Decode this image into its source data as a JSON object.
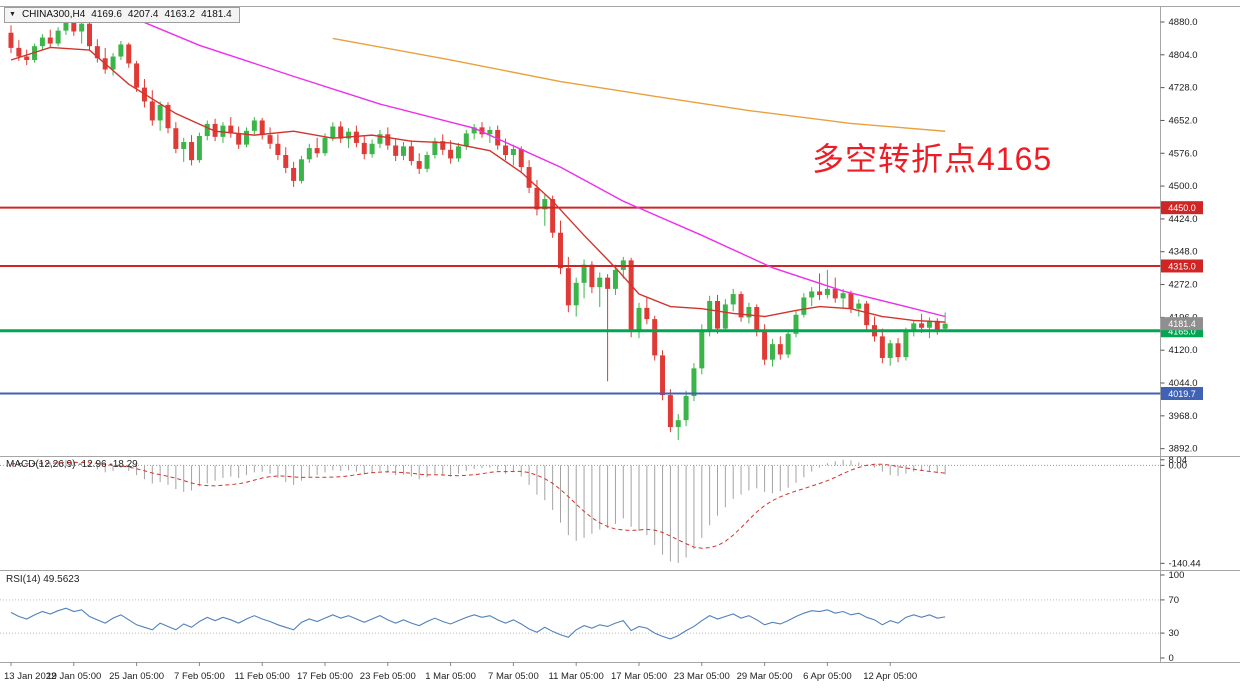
{
  "symbol_bar": {
    "collapse_icon": "▼",
    "title": "CHINA300,H4",
    "open": "4169.6",
    "high": "4207.4",
    "low": "4163.2",
    "close": "4181.4"
  },
  "annotation": {
    "text": "多空转折点4165",
    "color": "#ee1c25"
  },
  "chart_data": [
    {
      "type": "candlestick",
      "title": "CHINA300,H4",
      "timeframe": "H4",
      "ylim": [
        3875,
        4917
      ],
      "y_ticks": [
        4880,
        4804,
        4728,
        4652,
        4576,
        4500,
        4424,
        4348,
        4272,
        4196,
        4120,
        4044,
        3968,
        3892
      ],
      "x_labels": [
        "13 Jan 2022",
        "19 Jan 05:00",
        "25 Jan 05:00",
        "7 Feb 05:00",
        "11 Feb 05:00",
        "17 Feb 05:00",
        "23 Feb 05:00",
        "1 Mar 05:00",
        "7 Mar 05:00",
        "11 Mar 05:00",
        "17 Mar 05:00",
        "23 Mar 05:00",
        "29 Mar 05:00",
        "6 Apr 05:00",
        "12 Apr 05:00"
      ],
      "label_every": 8,
      "up_color": "#3bb54a",
      "down_color": "#df3a35",
      "ohlc": [
        [
          4855,
          4872,
          4808,
          4820
        ],
        [
          4820,
          4838,
          4790,
          4800
        ],
        [
          4800,
          4816,
          4780,
          4792
        ],
        [
          4792,
          4830,
          4786,
          4824
        ],
        [
          4824,
          4852,
          4814,
          4844
        ],
        [
          4844,
          4862,
          4820,
          4830
        ],
        [
          4830,
          4868,
          4824,
          4860
        ],
        [
          4860,
          4898,
          4850,
          4886
        ],
        [
          4886,
          4900,
          4848,
          4858
        ],
        [
          4858,
          4890,
          4830,
          4876
        ],
        [
          4876,
          4882,
          4816,
          4824
        ],
        [
          4824,
          4840,
          4786,
          4796
        ],
        [
          4796,
          4820,
          4760,
          4770
        ],
        [
          4770,
          4808,
          4756,
          4800
        ],
        [
          4800,
          4836,
          4792,
          4828
        ],
        [
          4828,
          4832,
          4774,
          4784
        ],
        [
          4784,
          4790,
          4718,
          4728
        ],
        [
          4728,
          4748,
          4682,
          4696
        ],
        [
          4696,
          4722,
          4640,
          4652
        ],
        [
          4652,
          4696,
          4628,
          4688
        ],
        [
          4688,
          4694,
          4622,
          4634
        ],
        [
          4634,
          4648,
          4576,
          4586
        ],
        [
          4586,
          4612,
          4556,
          4602
        ],
        [
          4602,
          4618,
          4548,
          4560
        ],
        [
          4560,
          4624,
          4554,
          4616
        ],
        [
          4616,
          4652,
          4606,
          4644
        ],
        [
          4644,
          4656,
          4604,
          4614
        ],
        [
          4614,
          4648,
          4600,
          4640
        ],
        [
          4640,
          4660,
          4612,
          4622
        ],
        [
          4622,
          4638,
          4586,
          4596
        ],
        [
          4596,
          4636,
          4590,
          4628
        ],
        [
          4628,
          4660,
          4620,
          4652
        ],
        [
          4652,
          4658,
          4608,
          4618
        ],
        [
          4618,
          4636,
          4586,
          4598
        ],
        [
          4598,
          4620,
          4560,
          4572
        ],
        [
          4572,
          4590,
          4530,
          4542
        ],
        [
          4542,
          4556,
          4498,
          4512
        ],
        [
          4512,
          4570,
          4506,
          4562
        ],
        [
          4562,
          4598,
          4554,
          4588
        ],
        [
          4588,
          4612,
          4566,
          4576
        ],
        [
          4576,
          4622,
          4570,
          4612
        ],
        [
          4612,
          4648,
          4604,
          4638
        ],
        [
          4638,
          4650,
          4600,
          4610
        ],
        [
          4610,
          4634,
          4588,
          4626
        ],
        [
          4626,
          4640,
          4590,
          4600
        ],
        [
          4600,
          4616,
          4562,
          4574
        ],
        [
          4574,
          4608,
          4566,
          4598
        ],
        [
          4598,
          4630,
          4588,
          4620
        ],
        [
          4620,
          4636,
          4584,
          4594
        ],
        [
          4594,
          4610,
          4558,
          4570
        ],
        [
          4570,
          4602,
          4560,
          4592
        ],
        [
          4592,
          4606,
          4548,
          4558
        ],
        [
          4558,
          4576,
          4528,
          4540
        ],
        [
          4540,
          4580,
          4532,
          4572
        ],
        [
          4572,
          4612,
          4564,
          4604
        ],
        [
          4604,
          4620,
          4572,
          4584
        ],
        [
          4584,
          4606,
          4552,
          4564
        ],
        [
          4564,
          4600,
          4556,
          4592
        ],
        [
          4592,
          4630,
          4584,
          4622
        ],
        [
          4622,
          4644,
          4608,
          4636
        ],
        [
          4636,
          4648,
          4612,
          4620
        ],
        [
          4620,
          4638,
          4600,
          4630
        ],
        [
          4630,
          4640,
          4584,
          4594
        ],
        [
          4594,
          4610,
          4560,
          4572
        ],
        [
          4572,
          4596,
          4548,
          4586
        ],
        [
          4586,
          4592,
          4534,
          4544
        ],
        [
          4544,
          4560,
          4484,
          4496
        ],
        [
          4496,
          4514,
          4432,
          4446
        ],
        [
          4446,
          4480,
          4408,
          4470
        ],
        [
          4470,
          4478,
          4380,
          4392
        ],
        [
          4392,
          4420,
          4296,
          4310
        ],
        [
          4310,
          4336,
          4208,
          4224
        ],
        [
          4224,
          4288,
          4198,
          4276
        ],
        [
          4276,
          4330,
          4240,
          4318
        ],
        [
          4318,
          4326,
          4252,
          4266
        ],
        [
          4266,
          4300,
          4220,
          4288
        ],
        [
          4288,
          4296,
          4048,
          4262
        ],
        [
          4262,
          4318,
          4248,
          4306
        ],
        [
          4306,
          4336,
          4286,
          4328
        ],
        [
          4328,
          4334,
          4150,
          4162
        ],
        [
          4162,
          4230,
          4148,
          4218
        ],
        [
          4218,
          4242,
          4180,
          4192
        ],
        [
          4192,
          4200,
          4096,
          4108
        ],
        [
          4108,
          4120,
          4004,
          4016
        ],
        [
          4016,
          4030,
          3930,
          3942
        ],
        [
          3942,
          3972,
          3912,
          3958
        ],
        [
          3958,
          4026,
          3944,
          4014
        ],
        [
          4014,
          4090,
          4002,
          4078
        ],
        [
          4078,
          4180,
          4064,
          4168
        ],
        [
          4168,
          4246,
          4152,
          4234
        ],
        [
          4234,
          4248,
          4158,
          4170
        ],
        [
          4170,
          4238,
          4162,
          4226
        ],
        [
          4226,
          4262,
          4210,
          4250
        ],
        [
          4250,
          4256,
          4186,
          4196
        ],
        [
          4196,
          4230,
          4182,
          4220
        ],
        [
          4220,
          4226,
          4152,
          4164
        ],
        [
          4164,
          4180,
          4086,
          4098
        ],
        [
          4098,
          4146,
          4082,
          4134
        ],
        [
          4134,
          4152,
          4098,
          4110
        ],
        [
          4110,
          4168,
          4102,
          4158
        ],
        [
          4158,
          4212,
          4150,
          4202
        ],
        [
          4202,
          4252,
          4196,
          4242
        ],
        [
          4242,
          4266,
          4222,
          4256
        ],
        [
          4256,
          4298,
          4236,
          4248
        ],
        [
          4248,
          4306,
          4240,
          4262
        ],
        [
          4262,
          4288,
          4230,
          4240
        ],
        [
          4240,
          4262,
          4218,
          4252
        ],
        [
          4252,
          4258,
          4206,
          4216
        ],
        [
          4216,
          4238,
          4198,
          4228
        ],
        [
          4228,
          4234,
          4168,
          4178
        ],
        [
          4178,
          4198,
          4140,
          4152
        ],
        [
          4152,
          4170,
          4090,
          4102
        ],
        [
          4102,
          4144,
          4084,
          4136
        ],
        [
          4136,
          4148,
          4092,
          4104
        ],
        [
          4104,
          4172,
          4096,
          4164
        ],
        [
          4164,
          4190,
          4152,
          4182
        ],
        [
          4182,
          4204,
          4160,
          4172
        ],
        [
          4172,
          4196,
          4148,
          4188
        ],
        [
          4188,
          4194,
          4156,
          4166
        ],
        [
          4169.6,
          4207.4,
          4163.2,
          4181.4
        ]
      ],
      "overlays": [
        {
          "name": "ma-fast",
          "color": "#d2342c",
          "points": [
            [
              0,
              4792
            ],
            [
              5,
              4821
            ],
            [
              10,
              4815
            ],
            [
              15,
              4736
            ],
            [
              21,
              4668
            ],
            [
              26,
              4627
            ],
            [
              31,
              4618
            ],
            [
              36,
              4627
            ],
            [
              41,
              4611
            ],
            [
              46,
              4618
            ],
            [
              51,
              4604
            ],
            [
              56,
              4600
            ],
            [
              61,
              4582
            ],
            [
              65,
              4532
            ],
            [
              69,
              4465
            ],
            [
              73,
              4386
            ],
            [
              77,
              4311
            ],
            [
              80,
              4250
            ],
            [
              84,
              4221
            ],
            [
              88,
              4216
            ],
            [
              92,
              4205
            ],
            [
              96,
              4198
            ],
            [
              100,
              4212
            ],
            [
              103,
              4221
            ],
            [
              107,
              4216
            ],
            [
              111,
              4198
            ],
            [
              115,
              4189
            ],
            [
              119,
              4185
            ]
          ]
        },
        {
          "name": "ma-mid",
          "color": "#ef2dec",
          "points": [
            [
              15,
              4894
            ],
            [
              24,
              4826
            ],
            [
              36,
              4754
            ],
            [
              47,
              4690
            ],
            [
              59,
              4634
            ],
            [
              70,
              4544
            ],
            [
              78,
              4465
            ],
            [
              88,
              4386
            ],
            [
              97,
              4311
            ],
            [
              106,
              4257
            ],
            [
              114,
              4221
            ],
            [
              119,
              4198
            ]
          ]
        },
        {
          "name": "ma-slow",
          "color": "#e8a13c",
          "points": [
            [
              41,
              4842
            ],
            [
              56,
              4792
            ],
            [
              70,
              4742
            ],
            [
              82,
              4708
            ],
            [
              94,
              4675
            ],
            [
              107,
              4645
            ],
            [
              119,
              4627
            ]
          ]
        }
      ],
      "hlines": [
        {
          "price": 4450.0,
          "label": "4450.0",
          "color": "#cf2525",
          "width": 2
        },
        {
          "price": 4315.0,
          "label": "4315.0",
          "color": "#cf2525",
          "width": 2
        },
        {
          "price": 4165.0,
          "label": "4165.0",
          "color": "#00a651",
          "width": 3
        },
        {
          "price": 4019.7,
          "label": "4019.7",
          "color": "#3f62b5",
          "width": 2
        }
      ],
      "current_price": {
        "value": 4181.4,
        "label": "4181.4",
        "color": "#8f8f8f"
      }
    },
    {
      "type": "macd-histogram",
      "label": "MACD(12,26,9) -12.96 -18.29",
      "ylim": [
        -150,
        12
      ],
      "hist_color": "#a3a3a3",
      "signal_color": "#d2342c",
      "axis_labels": [
        {
          "v": 8.04,
          "text": "8.04"
        },
        {
          "v": 0,
          "text": "0.00"
        },
        {
          "v": -140.44,
          "text": "-140.44"
        }
      ],
      "values": [
        2,
        4,
        1,
        3,
        5,
        4,
        6,
        8,
        5,
        3,
        -2,
        -6,
        -10,
        -8,
        -4,
        -8,
        -14,
        -20,
        -26,
        -24,
        -28,
        -34,
        -38,
        -36,
        -30,
        -26,
        -22,
        -18,
        -16,
        -18,
        -14,
        -10,
        -9,
        -12,
        -18,
        -24,
        -28,
        -22,
        -16,
        -14,
        -10,
        -7,
        -8,
        -7,
        -9,
        -13,
        -11,
        -8,
        -10,
        -14,
        -13,
        -16,
        -20,
        -17,
        -12,
        -14,
        -16,
        -12,
        -8,
        -5,
        -4,
        -3,
        -7,
        -12,
        -10,
        -16,
        -28,
        -42,
        -50,
        -64,
        -82,
        -100,
        -108,
        -104,
        -98,
        -92,
        -90,
        -84,
        -76,
        -88,
        -94,
        -100,
        -114,
        -128,
        -138,
        -140,
        -132,
        -120,
        -104,
        -86,
        -72,
        -60,
        -48,
        -42,
        -36,
        -33,
        -38,
        -40,
        -37,
        -32,
        -25,
        -17,
        -9,
        -3,
        3,
        6,
        8,
        7,
        4,
        1,
        -3,
        -9,
        -14,
        -15,
        -12,
        -9,
        -8,
        -9,
        -11,
        -12.96
      ]
    },
    {
      "type": "line",
      "label": "RSI(14) 49.5623",
      "ylim": [
        0,
        100
      ],
      "levels": [
        70,
        30
      ],
      "line_color": "#4f81bd",
      "axis_labels": [
        "100",
        "70",
        "30",
        "0"
      ],
      "values": [
        55,
        50,
        47,
        52,
        56,
        53,
        57,
        60,
        56,
        58,
        50,
        46,
        42,
        48,
        52,
        46,
        40,
        37,
        34,
        42,
        38,
        34,
        41,
        37,
        44,
        49,
        45,
        49,
        46,
        42,
        47,
        51,
        47,
        44,
        40,
        37,
        34,
        43,
        47,
        44,
        48,
        52,
        48,
        51,
        47,
        43,
        47,
        51,
        46,
        42,
        46,
        42,
        39,
        44,
        48,
        44,
        41,
        45,
        49,
        52,
        49,
        51,
        46,
        42,
        46,
        41,
        35,
        31,
        37,
        32,
        28,
        25,
        34,
        39,
        36,
        40,
        38,
        42,
        45,
        33,
        38,
        36,
        30,
        26,
        23,
        27,
        33,
        38,
        45,
        51,
        47,
        50,
        53,
        48,
        51,
        46,
        40,
        43,
        41,
        45,
        50,
        54,
        57,
        56,
        58,
        54,
        56,
        52,
        54,
        49,
        46,
        40,
        45,
        42,
        49,
        52,
        49,
        52,
        48,
        49.56
      ]
    }
  ]
}
